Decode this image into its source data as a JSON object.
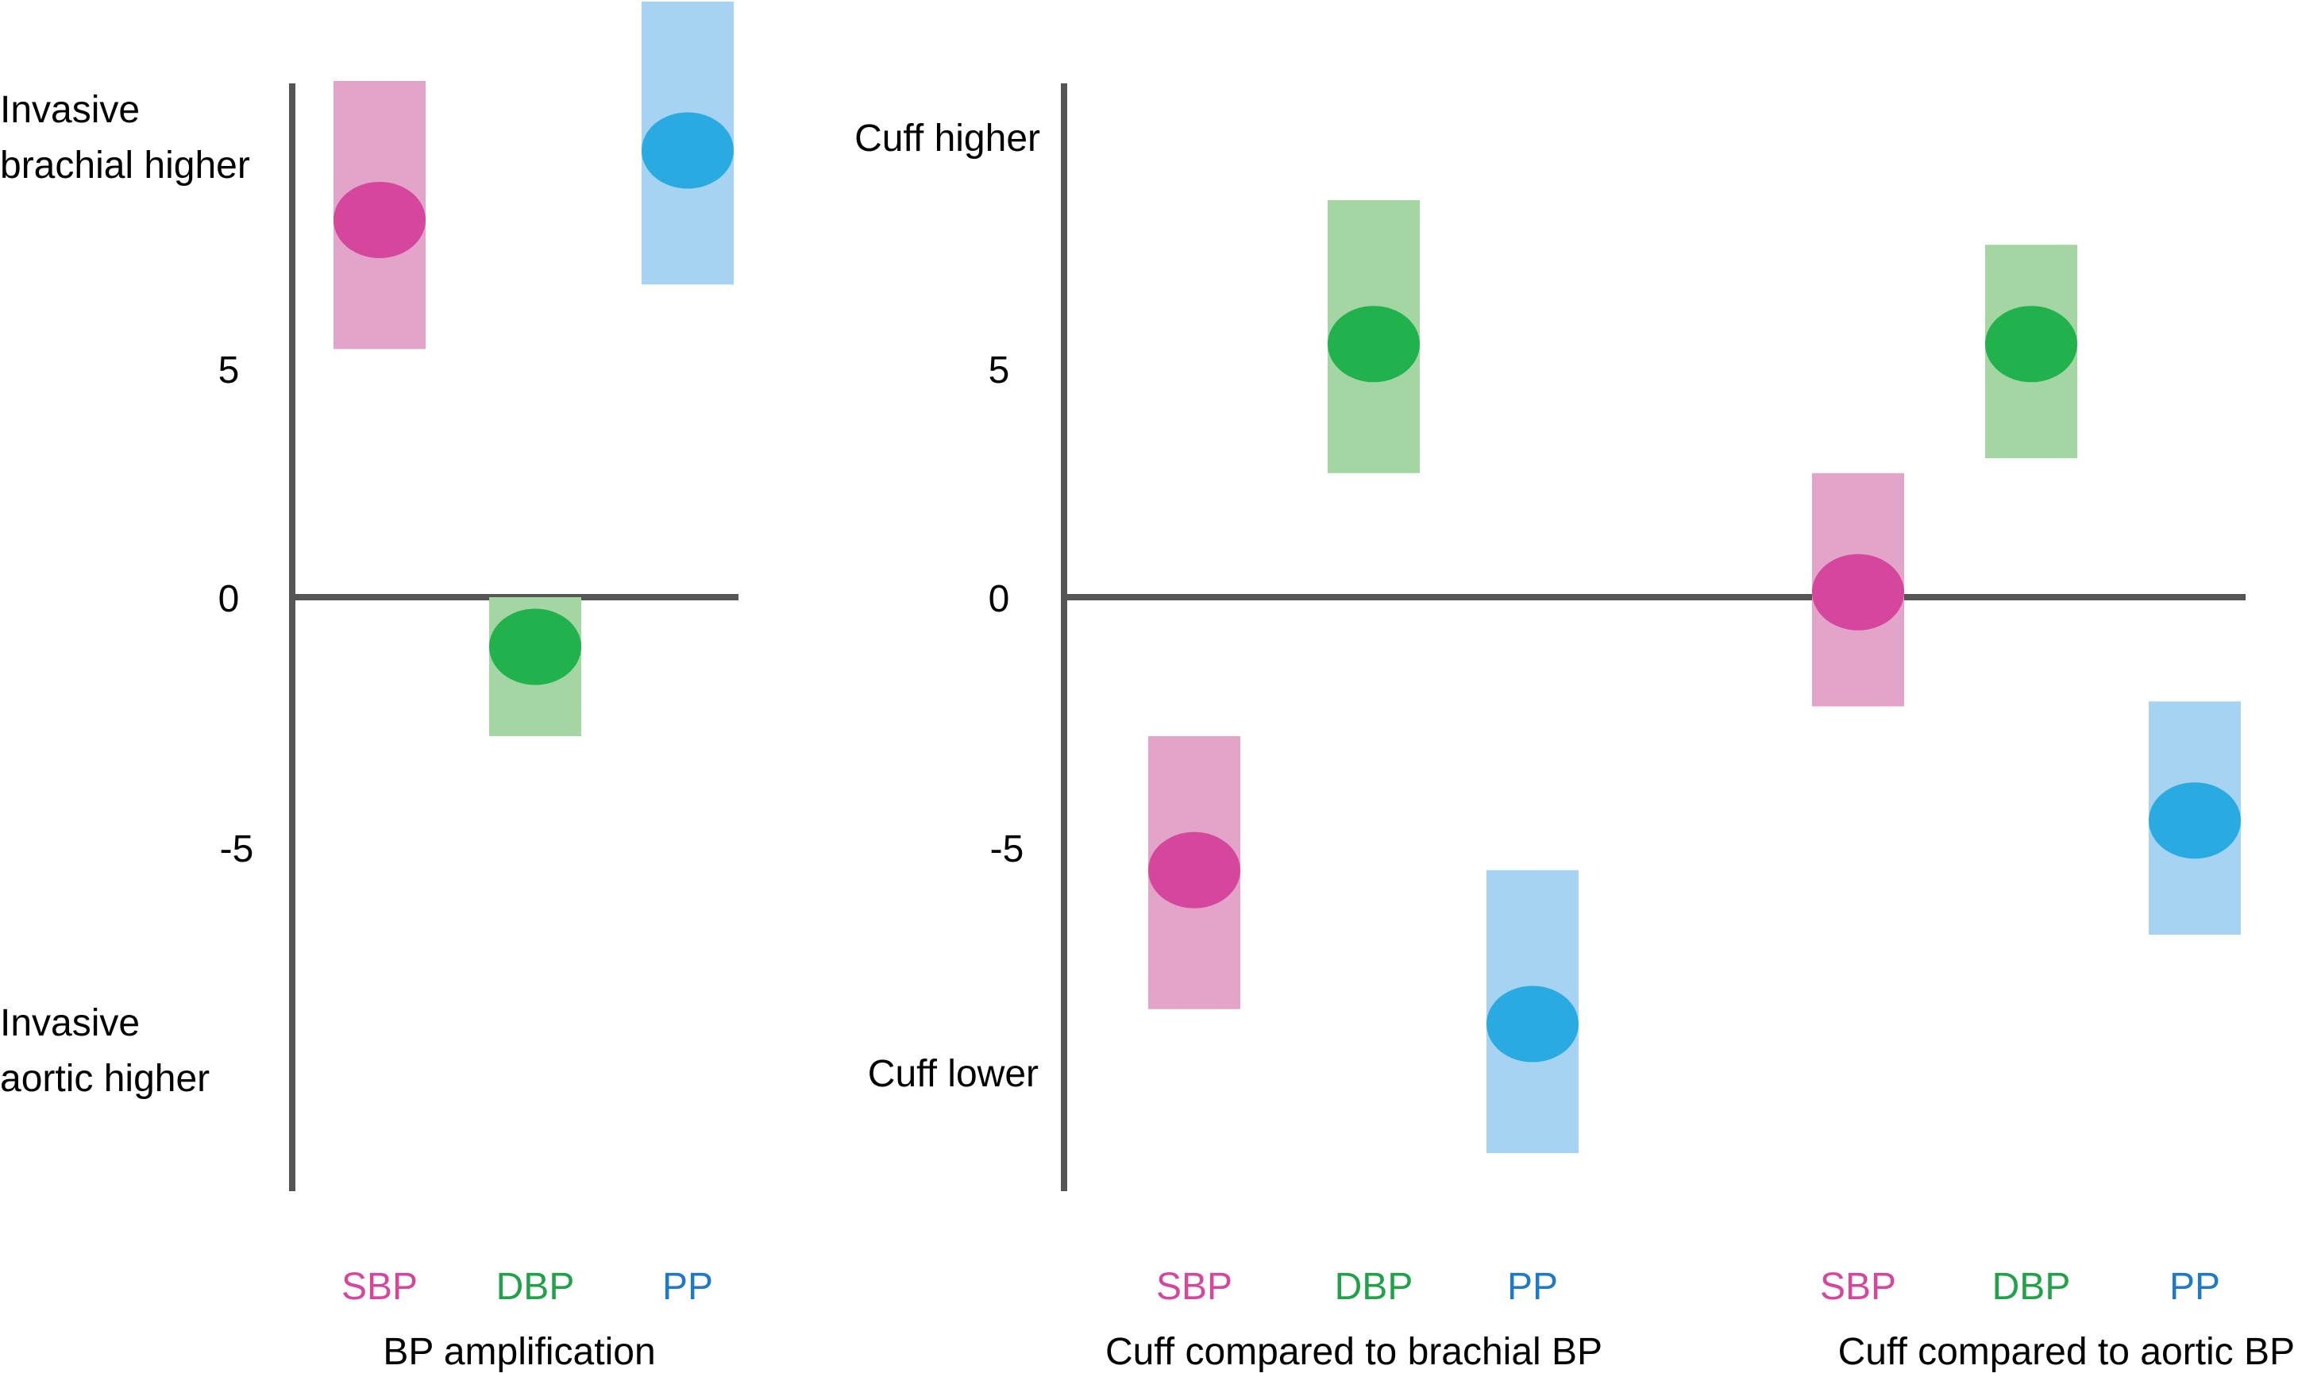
{
  "colors": {
    "axis": "#555555",
    "text": "#000000",
    "SBP": {
      "band": "#e2a5c9",
      "point": "#d4479d",
      "label": "#d4479d"
    },
    "DBP": {
      "band": "#a3d6a3",
      "point": "#21b14d",
      "label": "#21a148"
    },
    "PP": {
      "band": "#a6d3f2",
      "point": "#29abe2",
      "label": "#1f78c8"
    }
  },
  "chart_data": [
    {
      "type": "scatter",
      "title": "BP amplification",
      "y_ticks": [
        "5",
        "0",
        "-5"
      ],
      "y_annotations": {
        "top": [
          "Invasive",
          "brachial higher"
        ],
        "bottom": [
          "Invasive",
          "aortic higher"
        ]
      },
      "ylim": [
        -12,
        10.6
      ],
      "categories": [
        "SBP",
        "DBP",
        "PP"
      ],
      "points": [
        {
          "category": "SBP",
          "value": 7.6,
          "low": 5.0,
          "high": 10.4
        },
        {
          "category": "DBP",
          "value": -1.0,
          "low": -2.8,
          "high": 0.0
        },
        {
          "category": "PP",
          "value": 9.0,
          "low": 6.3,
          "high": 12.0
        }
      ]
    },
    {
      "type": "scatter",
      "title": "Cuff compared to brachial BP",
      "y_ticks": [
        "5",
        "0",
        "-5"
      ],
      "y_annotations": {
        "top": [
          "Cuff higher"
        ],
        "bottom": [
          "Cuff lower"
        ]
      },
      "ylim": [
        -12,
        10.6
      ],
      "categories": [
        "SBP",
        "DBP",
        "PP"
      ],
      "points": [
        {
          "category": "SBP",
          "value": -5.5,
          "low": -8.3,
          "high": -2.8
        },
        {
          "category": "DBP",
          "value": 5.1,
          "low": 2.5,
          "high": 8.0
        },
        {
          "category": "PP",
          "value": -8.6,
          "low": -11.2,
          "high": -5.5
        }
      ]
    },
    {
      "type": "scatter",
      "title": "Cuff compared to aortic BP",
      "categories": [
        "SBP",
        "DBP",
        "PP"
      ],
      "ylim": [
        -12,
        10.6
      ],
      "points": [
        {
          "category": "SBP",
          "value": 0.1,
          "low": -2.2,
          "high": 2.5
        },
        {
          "category": "DBP",
          "value": 5.1,
          "low": 2.8,
          "high": 7.1
        },
        {
          "category": "PP",
          "value": -4.5,
          "low": -6.8,
          "high": -2.1
        }
      ]
    }
  ]
}
